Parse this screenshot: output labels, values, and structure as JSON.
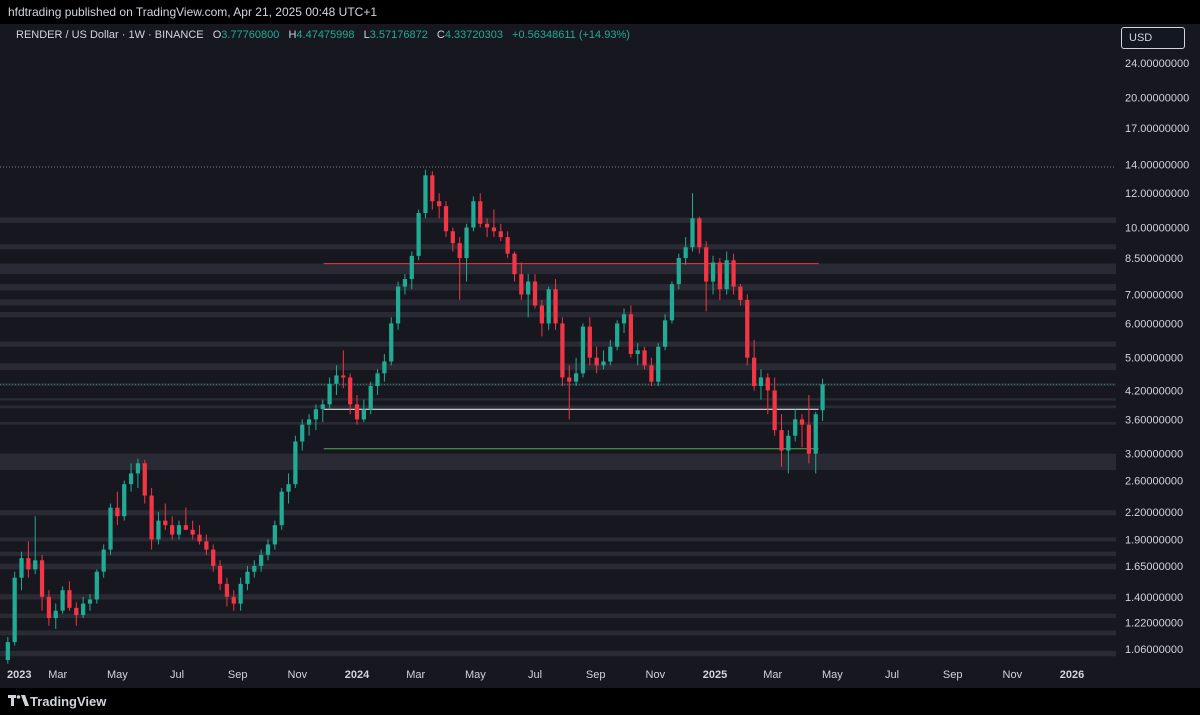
{
  "header": {
    "publisher": "hfdtrading published on TradingView.com, Apr 21, 2025 00:48 UTC+1"
  },
  "legend": {
    "symbol": "RENDER / US Dollar · 1W · BINANCE",
    "open_label": "O",
    "open_value": "3.77760800",
    "high_label": "H",
    "high_value": "4.47475998",
    "low_label": "L",
    "low_value": "3.57176872",
    "close_label": "C",
    "close_value": "4.33720303",
    "change": "+0.56348611 (+14.93%)"
  },
  "currency_button": "USD",
  "footer": {
    "brand": "TradingView"
  },
  "colors": {
    "up": "#22ab94",
    "down": "#f23645",
    "background": "#16171f",
    "zone": "#3a3b44",
    "resistance_line": "#f23645",
    "support_line_white": "#ffffff",
    "support_line_green": "#4caf50"
  },
  "chart_data": {
    "type": "candlestick",
    "symbol": "RENDER / US Dollar",
    "interval": "1W",
    "exchange": "BINANCE",
    "y_scale": "log",
    "ylim": [
      1.0,
      26.0
    ],
    "y_ticks": [
      {
        "value": 24,
        "label": "24.00000000"
      },
      {
        "value": 20,
        "label": "20.00000000"
      },
      {
        "value": 17,
        "label": "17.00000000"
      },
      {
        "value": 14,
        "label": "14.00000000"
      },
      {
        "value": 12,
        "label": "12.00000000"
      },
      {
        "value": 10,
        "label": "10.00000000"
      },
      {
        "value": 8.5,
        "label": "8.50000000"
      },
      {
        "value": 7,
        "label": "7.00000000"
      },
      {
        "value": 6,
        "label": "6.00000000"
      },
      {
        "value": 5,
        "label": "5.00000000"
      },
      {
        "value": 4.2,
        "label": "4.20000000"
      },
      {
        "value": 3.6,
        "label": "3.60000000"
      },
      {
        "value": 3,
        "label": "3.00000000"
      },
      {
        "value": 2.6,
        "label": "2.60000000"
      },
      {
        "value": 2.2,
        "label": "2.20000000"
      },
      {
        "value": 1.9,
        "label": "1.90000000"
      },
      {
        "value": 1.65,
        "label": "1.65000000"
      },
      {
        "value": 1.4,
        "label": "1.40000000"
      },
      {
        "value": 1.22,
        "label": "1.22000000"
      },
      {
        "value": 1.06,
        "label": "1.06000000"
      }
    ],
    "x_start": "2023-01-01",
    "x_end": "2026-02-15",
    "x_ticks": [
      {
        "date": "2023-01-01",
        "label": "2023"
      },
      {
        "date": "2023-03-01",
        "label": "Mar"
      },
      {
        "date": "2023-05-01",
        "label": "May"
      },
      {
        "date": "2023-07-01",
        "label": "Jul"
      },
      {
        "date": "2023-09-01",
        "label": "Sep"
      },
      {
        "date": "2023-11-01",
        "label": "Nov"
      },
      {
        "date": "2024-01-01",
        "label": "2024"
      },
      {
        "date": "2024-03-01",
        "label": "Mar"
      },
      {
        "date": "2024-05-01",
        "label": "May"
      },
      {
        "date": "2024-07-01",
        "label": "Jul"
      },
      {
        "date": "2024-09-01",
        "label": "Sep"
      },
      {
        "date": "2024-11-01",
        "label": "Nov"
      },
      {
        "date": "2025-01-01",
        "label": "2025"
      },
      {
        "date": "2025-03-01",
        "label": "Mar"
      },
      {
        "date": "2025-05-01",
        "label": "May"
      },
      {
        "date": "2025-07-01",
        "label": "Jul"
      },
      {
        "date": "2025-09-01",
        "label": "Sep"
      },
      {
        "date": "2025-11-01",
        "label": "Nov"
      },
      {
        "date": "2026-01-01",
        "label": "2026"
      }
    ],
    "first_candle_date": "2023-01-09",
    "candles_ohlc": [
      [
        1.0,
        1.13,
        0.98,
        1.1
      ],
      [
        1.1,
        1.6,
        1.08,
        1.55
      ],
      [
        1.55,
        1.78,
        1.45,
        1.72
      ],
      [
        1.72,
        1.88,
        1.55,
        1.62
      ],
      [
        1.62,
        2.15,
        1.58,
        1.7
      ],
      [
        1.7,
        1.75,
        1.3,
        1.4
      ],
      [
        1.4,
        1.45,
        1.2,
        1.25
      ],
      [
        1.25,
        1.35,
        1.18,
        1.3
      ],
      [
        1.3,
        1.48,
        1.28,
        1.45
      ],
      [
        1.45,
        1.52,
        1.3,
        1.32
      ],
      [
        1.32,
        1.36,
        1.2,
        1.27
      ],
      [
        1.27,
        1.4,
        1.25,
        1.35
      ],
      [
        1.35,
        1.42,
        1.3,
        1.38
      ],
      [
        1.38,
        1.62,
        1.35,
        1.6
      ],
      [
        1.6,
        1.85,
        1.55,
        1.8
      ],
      [
        1.8,
        2.3,
        1.75,
        2.25
      ],
      [
        2.25,
        2.45,
        2.05,
        2.15
      ],
      [
        2.15,
        2.6,
        2.1,
        2.55
      ],
      [
        2.55,
        2.85,
        2.45,
        2.7
      ],
      [
        2.7,
        2.92,
        2.5,
        2.85
      ],
      [
        2.85,
        2.9,
        2.3,
        2.4
      ],
      [
        2.4,
        2.5,
        1.8,
        1.9
      ],
      [
        1.9,
        2.2,
        1.85,
        2.1
      ],
      [
        2.1,
        2.3,
        2.0,
        2.05
      ],
      [
        2.05,
        2.15,
        1.9,
        1.95
      ],
      [
        1.95,
        2.1,
        1.9,
        2.05
      ],
      [
        2.05,
        2.25,
        2.0,
        2.0
      ],
      [
        2.0,
        2.1,
        1.9,
        1.95
      ],
      [
        1.95,
        2.05,
        1.85,
        1.88
      ],
      [
        1.88,
        1.95,
        1.75,
        1.8
      ],
      [
        1.8,
        1.85,
        1.6,
        1.65
      ],
      [
        1.65,
        1.7,
        1.45,
        1.5
      ],
      [
        1.5,
        1.55,
        1.33,
        1.4
      ],
      [
        1.4,
        1.45,
        1.3,
        1.35
      ],
      [
        1.35,
        1.55,
        1.3,
        1.5
      ],
      [
        1.5,
        1.65,
        1.45,
        1.6
      ],
      [
        1.6,
        1.7,
        1.55,
        1.65
      ],
      [
        1.65,
        1.8,
        1.6,
        1.75
      ],
      [
        1.75,
        1.9,
        1.7,
        1.85
      ],
      [
        1.85,
        2.1,
        1.8,
        2.05
      ],
      [
        2.05,
        2.5,
        2.0,
        2.45
      ],
      [
        2.45,
        2.7,
        2.3,
        2.55
      ],
      [
        2.55,
        3.3,
        2.5,
        3.2
      ],
      [
        3.2,
        3.6,
        3.05,
        3.5
      ],
      [
        3.5,
        3.7,
        3.3,
        3.6
      ],
      [
        3.6,
        3.9,
        3.4,
        3.8
      ],
      [
        3.8,
        4.0,
        3.55,
        3.9
      ],
      [
        3.9,
        4.5,
        3.8,
        4.35
      ],
      [
        4.35,
        4.8,
        4.1,
        4.55
      ],
      [
        4.55,
        5.2,
        4.25,
        4.5
      ],
      [
        4.5,
        4.6,
        3.7,
        3.9
      ],
      [
        3.9,
        4.1,
        3.5,
        3.6
      ],
      [
        3.6,
        4.0,
        3.55,
        3.8
      ],
      [
        3.8,
        4.4,
        3.7,
        4.3
      ],
      [
        4.3,
        4.7,
        4.1,
        4.6
      ],
      [
        4.6,
        5.1,
        4.4,
        4.9
      ],
      [
        4.9,
        6.2,
        4.8,
        6.0
      ],
      [
        6.0,
        7.5,
        5.8,
        7.3
      ],
      [
        7.3,
        7.8,
        7.0,
        7.6
      ],
      [
        7.6,
        8.8,
        7.2,
        8.6
      ],
      [
        8.6,
        11.0,
        8.4,
        10.8
      ],
      [
        10.8,
        13.6,
        10.5,
        13.2
      ],
      [
        13.2,
        13.5,
        11.0,
        11.5
      ],
      [
        11.5,
        12.0,
        10.5,
        11.2
      ],
      [
        11.2,
        11.5,
        9.5,
        9.8
      ],
      [
        9.8,
        10.0,
        8.8,
        9.2
      ],
      [
        9.2,
        9.5,
        6.8,
        8.5
      ],
      [
        8.5,
        10.2,
        7.5,
        10.0
      ],
      [
        10.0,
        11.8,
        9.8,
        11.5
      ],
      [
        11.5,
        12.0,
        10.0,
        10.2
      ],
      [
        10.2,
        10.5,
        9.5,
        10.0
      ],
      [
        10.0,
        11.0,
        9.5,
        9.8
      ],
      [
        9.8,
        10.2,
        9.3,
        9.5
      ],
      [
        9.5,
        9.8,
        8.5,
        8.7
      ],
      [
        8.7,
        8.8,
        7.5,
        7.8
      ],
      [
        7.8,
        8.3,
        6.8,
        7.0
      ],
      [
        7.0,
        7.8,
        6.2,
        7.5
      ],
      [
        7.5,
        7.8,
        6.5,
        6.6
      ],
      [
        6.6,
        6.8,
        5.6,
        6.0
      ],
      [
        6.0,
        7.3,
        5.8,
        7.2
      ],
      [
        7.2,
        7.6,
        5.8,
        6.0
      ],
      [
        6.0,
        6.2,
        4.3,
        4.5
      ],
      [
        4.5,
        4.8,
        3.6,
        4.4
      ],
      [
        4.4,
        5.0,
        4.3,
        4.6
      ],
      [
        4.6,
        6.0,
        4.5,
        5.9
      ],
      [
        5.9,
        6.2,
        4.8,
        5.0
      ],
      [
        5.0,
        5.3,
        4.6,
        4.8
      ],
      [
        4.8,
        5.2,
        4.7,
        4.9
      ],
      [
        4.9,
        5.5,
        4.8,
        5.3
      ],
      [
        5.3,
        6.1,
        5.2,
        6.0
      ],
      [
        6.0,
        6.5,
        5.7,
        6.3
      ],
      [
        6.3,
        6.6,
        5.0,
        5.1
      ],
      [
        5.1,
        5.4,
        4.8,
        5.2
      ],
      [
        5.2,
        5.3,
        4.7,
        4.8
      ],
      [
        4.8,
        5.0,
        4.3,
        4.4
      ],
      [
        4.4,
        5.4,
        4.3,
        5.3
      ],
      [
        5.3,
        6.3,
        5.2,
        6.1
      ],
      [
        6.1,
        7.5,
        6.0,
        7.4
      ],
      [
        7.4,
        8.7,
        7.2,
        8.5
      ],
      [
        8.5,
        9.5,
        8.2,
        9.0
      ],
      [
        9.0,
        12.0,
        8.8,
        10.5
      ],
      [
        10.5,
        10.6,
        8.7,
        9.0
      ],
      [
        9.0,
        9.3,
        6.4,
        7.5
      ],
      [
        7.5,
        8.6,
        7.0,
        8.3
      ],
      [
        8.3,
        8.5,
        6.8,
        7.2
      ],
      [
        7.2,
        8.8,
        7.0,
        8.4
      ],
      [
        8.4,
        8.7,
        7.0,
        7.3
      ],
      [
        7.3,
        7.4,
        6.6,
        6.8
      ],
      [
        6.8,
        7.0,
        4.8,
        5.0
      ],
      [
        5.0,
        5.5,
        4.2,
        4.3
      ],
      [
        4.3,
        4.7,
        4.0,
        4.5
      ],
      [
        4.5,
        4.6,
        3.7,
        4.2
      ],
      [
        4.2,
        4.5,
        3.3,
        3.4
      ],
      [
        3.4,
        3.7,
        2.8,
        3.05
      ],
      [
        3.05,
        3.4,
        2.7,
        3.3
      ],
      [
        3.3,
        3.8,
        3.2,
        3.6
      ],
      [
        3.6,
        3.7,
        3.1,
        3.5
      ],
      [
        3.5,
        4.1,
        2.85,
        3.0
      ],
      [
        3.0,
        3.75,
        2.7,
        3.7
      ],
      [
        3.78,
        4.47,
        3.57,
        4.34
      ]
    ],
    "horizontal_zones": [
      [
        1.02,
        1.05
      ],
      [
        1.14,
        1.17
      ],
      [
        1.25,
        1.28
      ],
      [
        1.38,
        1.42
      ],
      [
        1.62,
        1.67
      ],
      [
        1.74,
        1.78
      ],
      [
        1.88,
        1.92
      ],
      [
        2.16,
        2.22
      ],
      [
        2.75,
        3.0
      ],
      [
        3.5,
        3.55
      ],
      [
        3.82,
        3.88
      ],
      [
        3.98,
        4.03
      ],
      [
        4.3,
        4.36
      ],
      [
        4.68,
        4.85
      ],
      [
        5.3,
        5.45
      ],
      [
        6.2,
        6.38
      ],
      [
        6.6,
        6.82
      ],
      [
        7.15,
        7.4
      ],
      [
        7.8,
        8.25
      ],
      [
        8.9,
        9.15
      ],
      [
        10.25,
        10.55
      ]
    ],
    "lines": [
      {
        "price": 8.25,
        "from": "2023-11-28",
        "to": "2025-04-17",
        "color": "#f23645"
      },
      {
        "price": 3.8,
        "from": "2023-11-28",
        "to": "2025-04-17",
        "color": "#ffffff"
      },
      {
        "price": 3.08,
        "from": "2023-11-28",
        "to": "2025-04-17",
        "color": "#4caf50"
      },
      {
        "price": 13.8,
        "from": "2023-01-01",
        "to": "2026-02-15",
        "color": "#9598a1",
        "style": "dotted"
      },
      {
        "price": 4.34,
        "from": "2023-01-01",
        "to": "2026-02-15",
        "color": "#22ab94",
        "style": "dotted"
      }
    ]
  }
}
